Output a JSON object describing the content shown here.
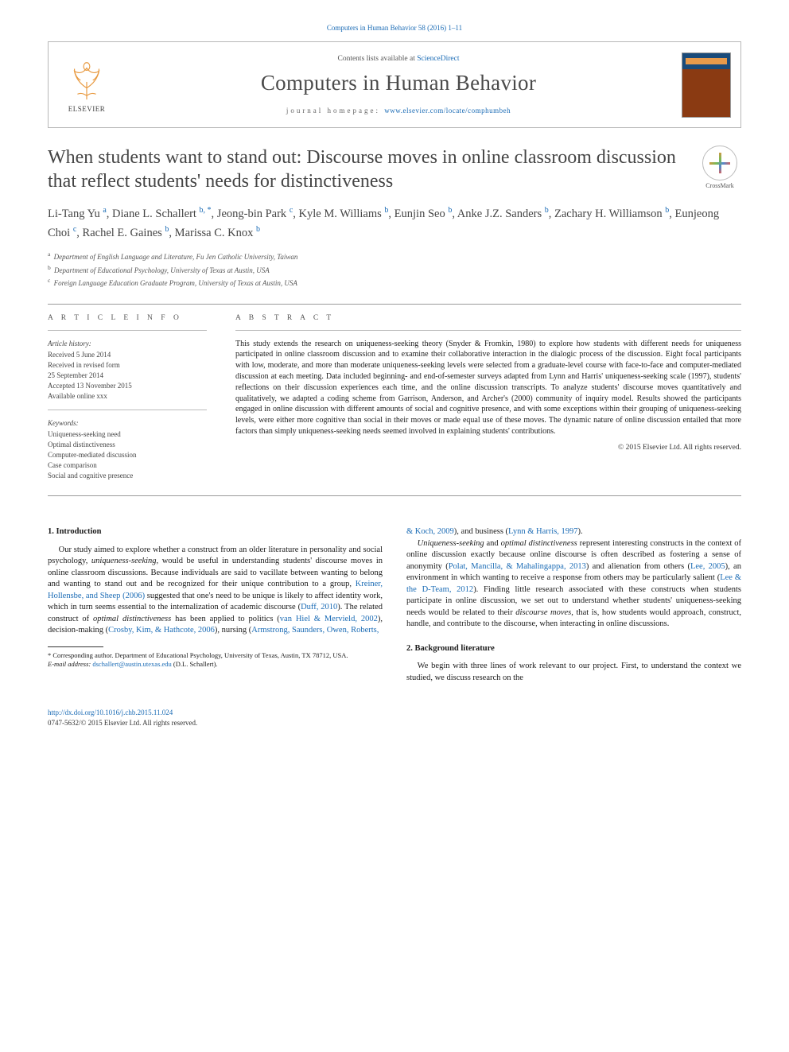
{
  "runningHead": "Computers in Human Behavior 58 (2016) 1–11",
  "header": {
    "contentsPrefix": "Contents lists available at ",
    "contentsLink": "ScienceDirect",
    "journalName": "Computers in Human Behavior",
    "homepageLabel": "journal homepage: ",
    "homepageUrl": "www.elsevier.com/locate/comphumbeh",
    "publisherWord": "ELSEVIER"
  },
  "crossmarkLabel": "CrossMark",
  "title": "When students want to stand out: Discourse moves in online classroom discussion that reflect students' needs for distinctiveness",
  "authors": [
    {
      "name": "Li-Tang Yu",
      "aff": "a"
    },
    {
      "name": "Diane L. Schallert",
      "aff": "b, *"
    },
    {
      "name": "Jeong-bin Park",
      "aff": "c"
    },
    {
      "name": "Kyle M. Williams",
      "aff": "b"
    },
    {
      "name": "Eunjin Seo",
      "aff": "b"
    },
    {
      "name": "Anke J.Z. Sanders",
      "aff": "b"
    },
    {
      "name": "Zachary H. Williamson",
      "aff": "b"
    },
    {
      "name": "Eunjeong Choi",
      "aff": "c"
    },
    {
      "name": "Rachel E. Gaines",
      "aff": "b"
    },
    {
      "name": "Marissa C. Knox",
      "aff": "b"
    }
  ],
  "affiliations": [
    {
      "key": "a",
      "text": "Department of English Language and Literature, Fu Jen Catholic University, Taiwan"
    },
    {
      "key": "b",
      "text": "Department of Educational Psychology, University of Texas at Austin, USA"
    },
    {
      "key": "c",
      "text": "Foreign Language Education Graduate Program, University of Texas at Austin, USA"
    }
  ],
  "articleInfo": {
    "heading": "A R T I C L E   I N F O",
    "historyLabel": "Article history:",
    "history": [
      "Received 5 June 2014",
      "Received in revised form",
      "25 September 2014",
      "Accepted 13 November 2015",
      "Available online xxx"
    ],
    "keywordsLabel": "Keywords:",
    "keywords": [
      "Uniqueness-seeking need",
      "Optimal distinctiveness",
      "Computer-mediated discussion",
      "Case comparison",
      "Social and cognitive presence"
    ]
  },
  "abstract": {
    "heading": "A B S T R A C T",
    "text": "This study extends the research on uniqueness-seeking theory (Snyder & Fromkin, 1980) to explore how students with different needs for uniqueness participated in online classroom discussion and to examine their collaborative interaction in the dialogic process of the discussion. Eight focal participants with low, moderate, and more than moderate uniqueness-seeking levels were selected from a graduate-level course with face-to-face and computer-mediated discussion at each meeting. Data included beginning- and end-of-semester surveys adapted from Lynn and Harris' uniqueness-seeking scale (1997), students' reflections on their discussion experiences each time, and the online discussion transcripts. To analyze students' discourse moves quantitatively and qualitatively, we adapted a coding scheme from Garrison, Anderson, and Archer's (2000) community of inquiry model. Results showed the participants engaged in online discussion with different amounts of social and cognitive presence, and with some exceptions within their grouping of uniqueness-seeking levels, were either more cognitive than social in their moves or made equal use of these moves. The dynamic nature of online discussion entailed that more factors than simply uniqueness-seeking needs seemed involved in explaining students' contributions.",
    "copyright": "© 2015 Elsevier Ltd. All rights reserved."
  },
  "sections": {
    "s1": {
      "heading": "1. Introduction",
      "p1a": "Our study aimed to explore whether a construct from an older literature in personality and social psychology, ",
      "p1it": "uniqueness-seeking",
      "p1b": ", would be useful in understanding students' discourse moves in online classroom discussions. Because individuals are said to vacillate between wanting to belong and wanting to stand out and be recognized for their unique contribution to a group, ",
      "c1": "Kreiner, Hollensbe, and Sheep (2006)",
      "p1c": " suggested that one's need to be unique is likely to affect identity work, which in turn seems essential to the internalization of academic discourse (",
      "c2": "Duff, 2010",
      "p1d": "). The related construct of ",
      "p1it2": "optimal distinctiveness",
      "p1e": " has been applied to politics (",
      "c3": "van Hiel & Mervield, 2002",
      "p1f": "), decision-making (",
      "c4": "Crosby, Kim, & Hathcote, 2006",
      "p1g": "), nursing (",
      "c5": "Armstrong, Saunders, Owen, Roberts,",
      "topRight1": "& Koch, 2009",
      "topRight2": "), and business (",
      "topRight3": "Lynn & Harris, 1997",
      "topRight4": ").",
      "p2it1": "Uniqueness-seeking",
      "p2a": " and ",
      "p2it2": "optimal distinctiveness",
      "p2b": " represent interesting constructs in the context of online discussion exactly because online discourse is often described as fostering a sense of anonymity (",
      "c6": "Polat, Mancilla, & Mahalingappa, 2013",
      "p2c": ") and alienation from others (",
      "c7": "Lee, 2005",
      "p2d": "), an environment in which wanting to receive a response from others may be particularly salient (",
      "c8": "Lee & the D-Team, 2012",
      "p2e": "). Finding little research associated with these constructs when students participate in online discussion, we set out to understand whether students' uniqueness-seeking needs would be related to their ",
      "p2it3": "discourse moves",
      "p2f": ", that is, how students would approach, construct, handle, and contribute to the discourse, when interacting in online discussions."
    },
    "s2": {
      "heading": "2. Background literature",
      "p1": "We begin with three lines of work relevant to our project. First, to understand the context we studied, we discuss research on the"
    }
  },
  "footnotes": {
    "corr": "* Corresponding author. Department of Educational Psychology, University of Texas, Austin, TX 78712, USA.",
    "emailLabel": "E-mail address: ",
    "email": "dschallert@austin.utexas.edu",
    "emailSuffix": " (D.L. Schallert)."
  },
  "doi": {
    "url": "http://dx.doi.org/10.1016/j.chb.2015.11.024",
    "issn": "0747-5632/© 2015 Elsevier Ltd. All rights reserved."
  }
}
